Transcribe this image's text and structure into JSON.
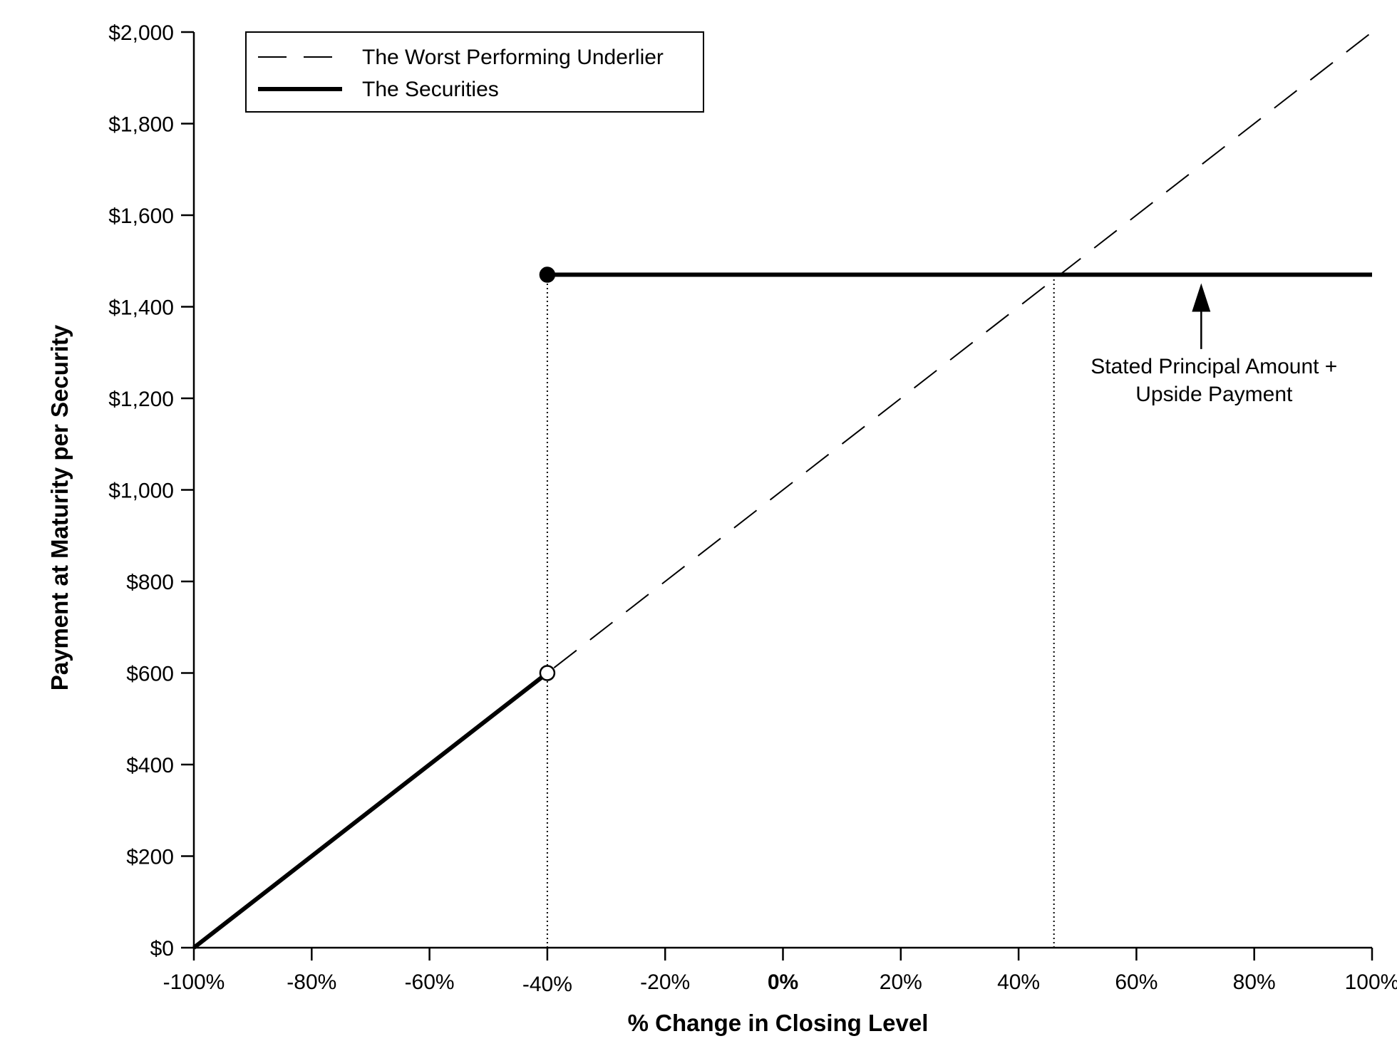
{
  "chart_data": {
    "type": "line",
    "title": "",
    "xlabel": "% Change in Closing Level",
    "ylabel": "Payment at Maturity per Security",
    "xlim": [
      -100,
      100
    ],
    "ylim": [
      0,
      2000
    ],
    "x_ticks": [
      {
        "value": -100,
        "label": "-100%"
      },
      {
        "value": -80,
        "label": "-80%"
      },
      {
        "value": -60,
        "label": "-60%"
      },
      {
        "value": -40,
        "label": "-40%"
      },
      {
        "value": -20,
        "label": "-20%"
      },
      {
        "value": 0,
        "label": "0%"
      },
      {
        "value": 20,
        "label": "20%"
      },
      {
        "value": 40,
        "label": "40%"
      },
      {
        "value": 60,
        "label": "60%"
      },
      {
        "value": 80,
        "label": "80%"
      },
      {
        "value": 100,
        "label": "100%"
      }
    ],
    "y_ticks": [
      {
        "value": 0,
        "label": "$0"
      },
      {
        "value": 200,
        "label": "$200"
      },
      {
        "value": 400,
        "label": "$400"
      },
      {
        "value": 600,
        "label": "$600"
      },
      {
        "value": 800,
        "label": "$800"
      },
      {
        "value": 1000,
        "label": "$1,000"
      },
      {
        "value": 1200,
        "label": "$1,200"
      },
      {
        "value": 1400,
        "label": "$1,400"
      },
      {
        "value": 1600,
        "label": "$1,600"
      },
      {
        "value": 1800,
        "label": "$1,800"
      },
      {
        "value": 2000,
        "label": "$2,000"
      }
    ],
    "legend_position": "top-left",
    "grid": false,
    "series": [
      {
        "name": "The Worst Performing Underlier",
        "style": "dashed",
        "points": [
          [
            -100,
            0
          ],
          [
            100,
            2000
          ]
        ]
      },
      {
        "name": "The Securities",
        "style": "solid-thick",
        "segments": [
          [
            [
              -100,
              0
            ],
            [
              -40,
              600
            ]
          ],
          [
            [
              -40,
              1470
            ],
            [
              100,
              1470
            ]
          ]
        ]
      }
    ],
    "markers": [
      {
        "x": -40,
        "y": 1470,
        "fill": "filled"
      },
      {
        "x": -40,
        "y": 600,
        "fill": "open"
      }
    ],
    "reference_lines": [
      {
        "x": -40,
        "y_from": 0,
        "y_to": 1470
      },
      {
        "x": 46,
        "y_from": 0,
        "y_to": 1470
      }
    ],
    "annotations": [
      {
        "lines": [
          "Stated Principal Amount +",
          "Upside Payment"
        ],
        "arrow_x": 71,
        "arrow_to_y": 1470,
        "arrow_from_y": 1320
      }
    ]
  },
  "colors": {
    "line": "#000000",
    "background": "#ffffff"
  }
}
